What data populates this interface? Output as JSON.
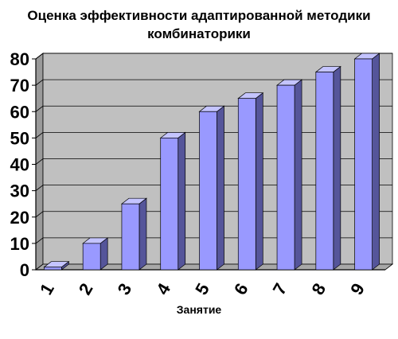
{
  "chart_data": {
    "type": "bar",
    "title_lines": [
      "Оценка эффективности адаптированной методики",
      "комбинаторики"
    ],
    "xlabel": "Занятие",
    "ylabel": "",
    "categories": [
      "1",
      "2",
      "3",
      "4",
      "5",
      "6",
      "7",
      "8",
      "9"
    ],
    "values": [
      1,
      10,
      25,
      50,
      60,
      65,
      70,
      75,
      80
    ],
    "ylim": [
      0,
      80
    ],
    "yticks": [
      0,
      10,
      20,
      30,
      40,
      50,
      60,
      70,
      80
    ],
    "grid": true,
    "legend": "none",
    "colors": {
      "plot_bg": "#c0c0c0",
      "wall_side": "#9a9a9a",
      "bar_front": "#9999ff",
      "bar_top": "#c4c4ff",
      "bar_side": "#55559a",
      "grid": "#000000"
    }
  }
}
